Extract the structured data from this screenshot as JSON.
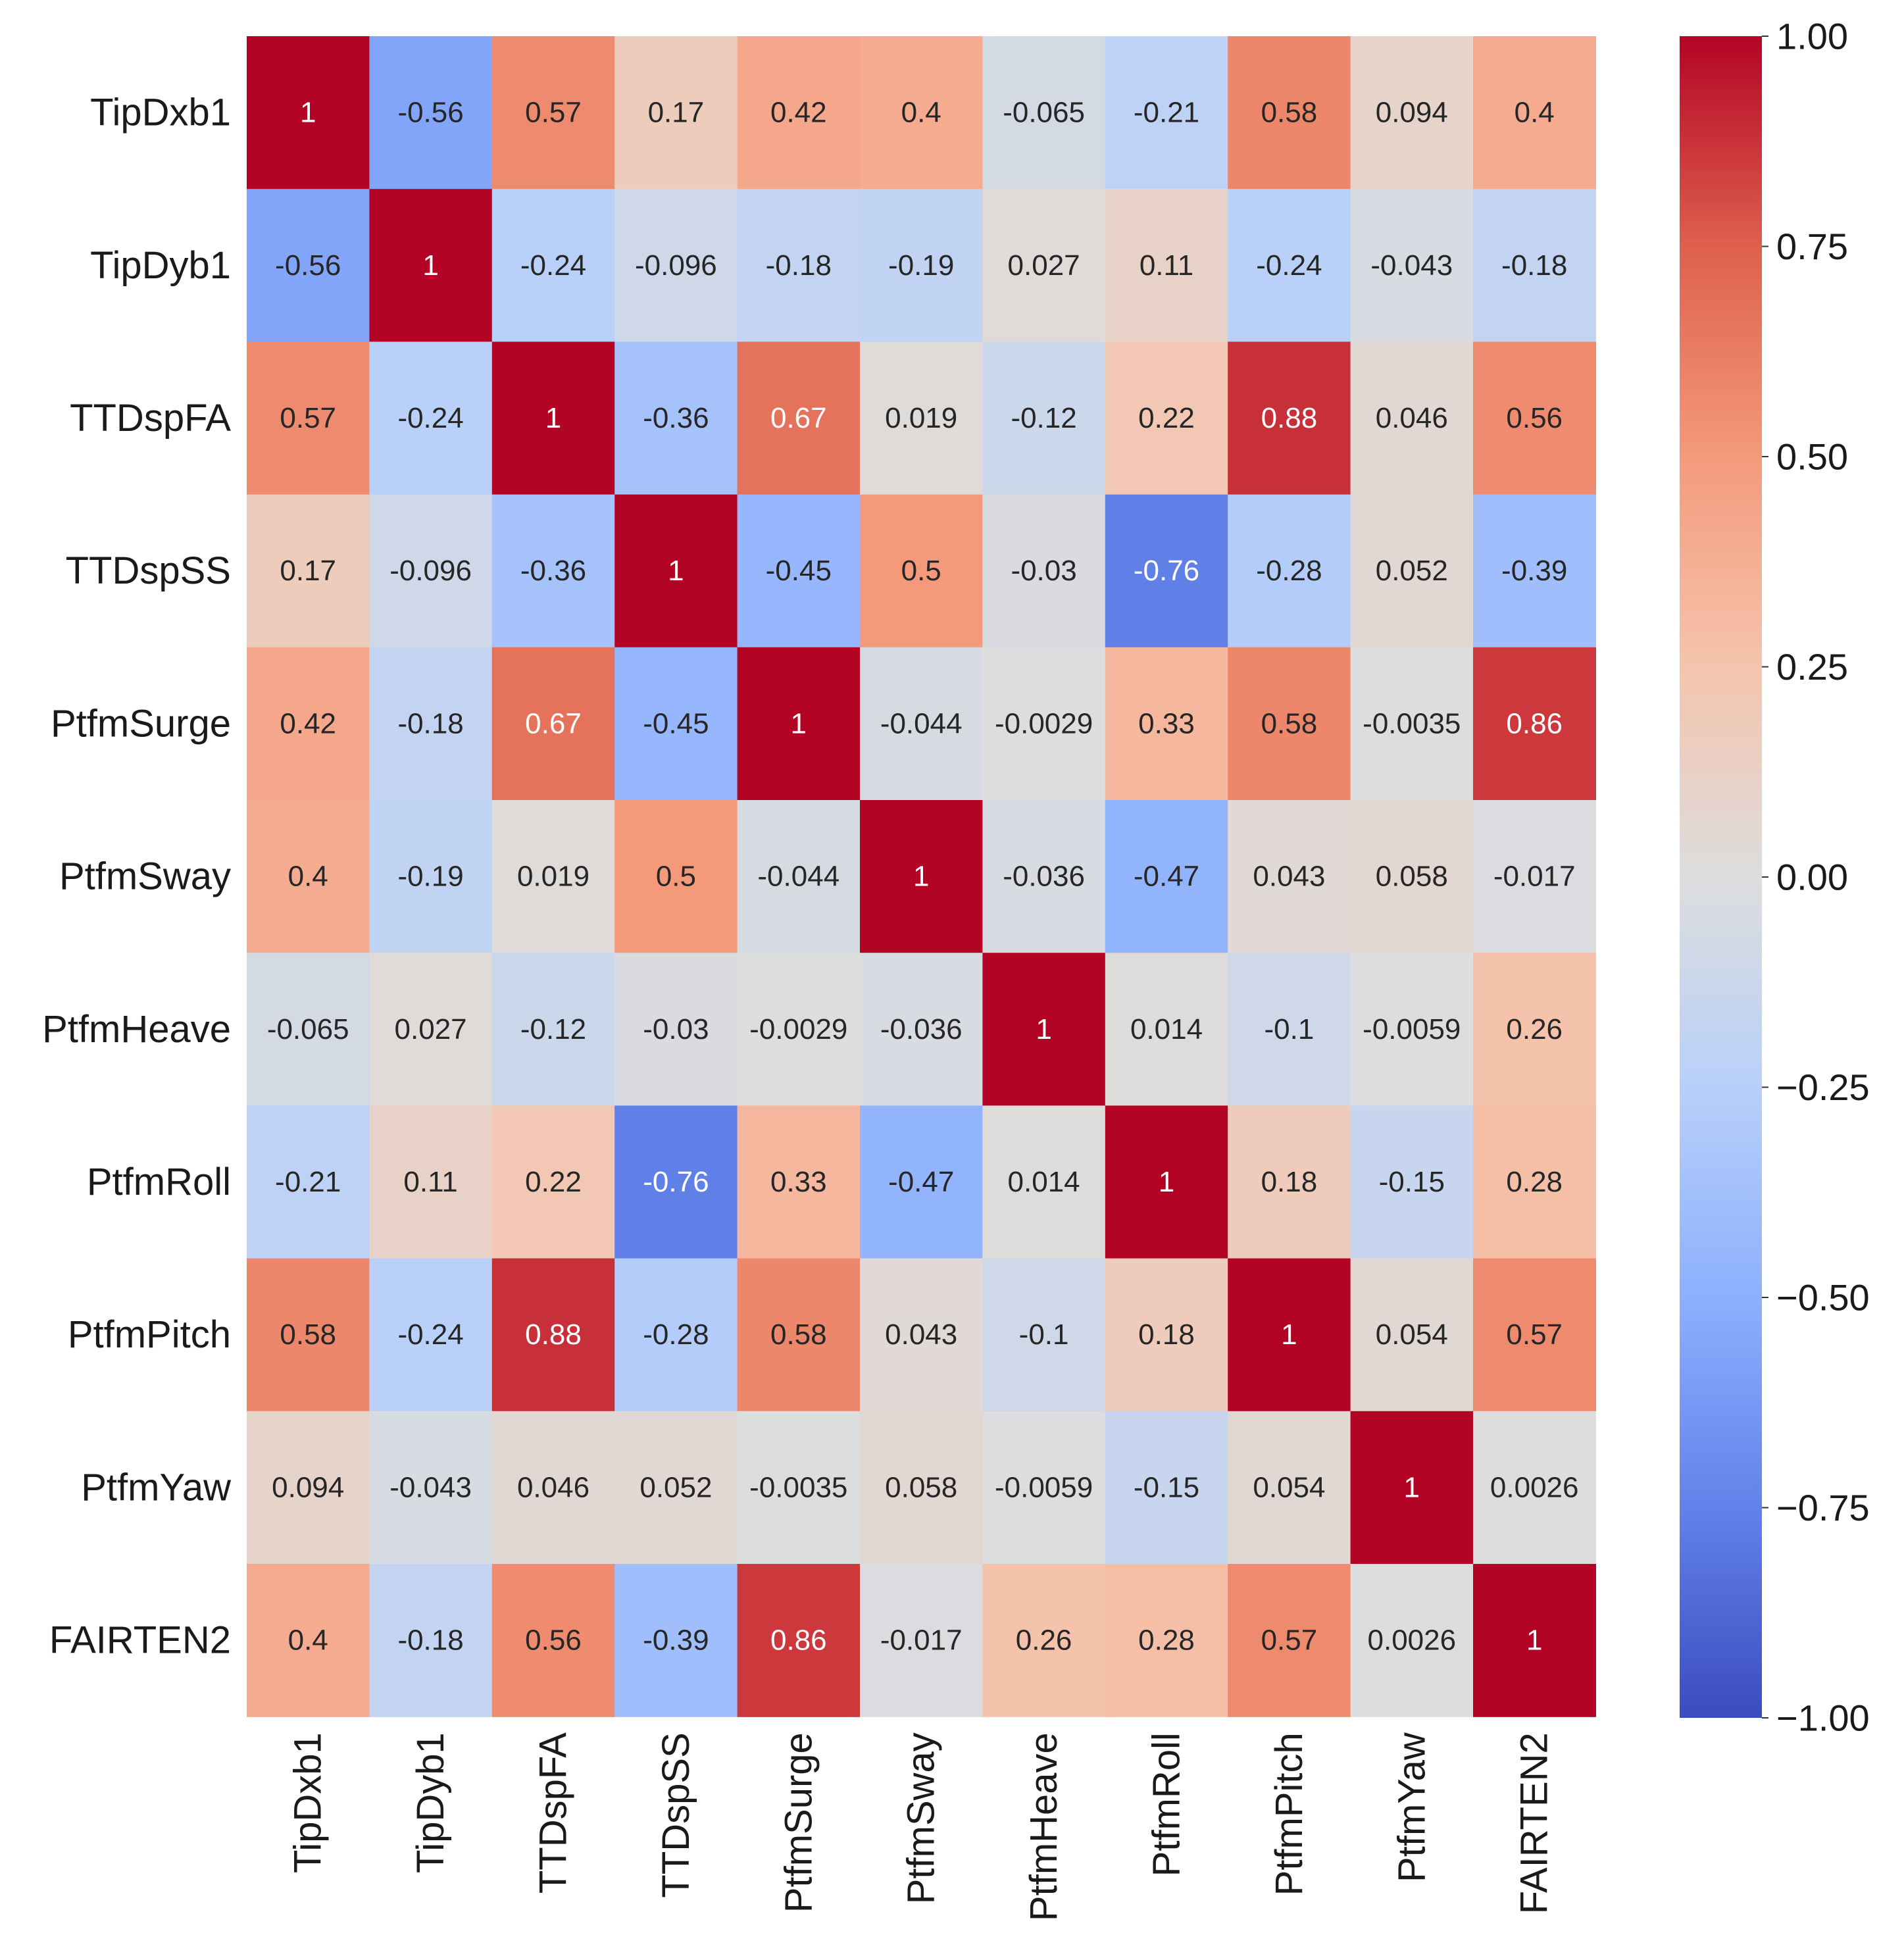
{
  "chart_data": {
    "type": "heatmap",
    "title": "",
    "xlabel": "",
    "ylabel": "",
    "colormap": "coolwarm",
    "vmin": -1.0,
    "vmax": 1.0,
    "variables": [
      "TipDxb1",
      "TipDyb1",
      "TTDspFA",
      "TTDspSS",
      "PtfmSurge",
      "PtfmSway",
      "PtfmHeave",
      "PtfmRoll",
      "PtfmPitch",
      "PtfmYaw",
      "FAIRTEN2"
    ],
    "values": [
      [
        1,
        -0.56,
        0.57,
        0.17,
        0.42,
        0.4,
        -0.065,
        -0.21,
        0.58,
        0.094,
        0.4
      ],
      [
        -0.56,
        1,
        -0.24,
        -0.096,
        -0.18,
        -0.19,
        0.027,
        0.11,
        -0.24,
        -0.043,
        -0.18
      ],
      [
        0.57,
        -0.24,
        1,
        -0.36,
        0.67,
        0.019,
        -0.12,
        0.22,
        0.88,
        0.046,
        0.56
      ],
      [
        0.17,
        -0.096,
        -0.36,
        1,
        -0.45,
        0.5,
        -0.03,
        -0.76,
        -0.28,
        0.052,
        -0.39
      ],
      [
        0.42,
        -0.18,
        0.67,
        -0.45,
        1,
        -0.044,
        -0.0029,
        0.33,
        0.58,
        -0.0035,
        0.86
      ],
      [
        0.4,
        -0.19,
        0.019,
        0.5,
        -0.044,
        1,
        -0.036,
        -0.47,
        0.043,
        0.058,
        -0.017
      ],
      [
        -0.065,
        0.027,
        -0.12,
        -0.03,
        -0.0029,
        -0.036,
        1,
        0.014,
        -0.1,
        -0.0059,
        0.26
      ],
      [
        -0.21,
        0.11,
        0.22,
        -0.76,
        0.33,
        -0.47,
        0.014,
        1,
        0.18,
        -0.15,
        0.28
      ],
      [
        0.58,
        -0.24,
        0.88,
        -0.28,
        0.58,
        0.043,
        -0.1,
        0.18,
        1,
        0.054,
        0.57
      ],
      [
        0.094,
        -0.043,
        0.046,
        0.052,
        -0.0035,
        0.058,
        -0.0059,
        -0.15,
        0.054,
        1,
        0.0026
      ],
      [
        0.4,
        -0.18,
        0.56,
        -0.39,
        0.86,
        -0.017,
        0.26,
        0.28,
        0.57,
        0.0026,
        1
      ]
    ],
    "colorbar": {
      "ticks": [
        1.0,
        0.75,
        0.5,
        0.25,
        0.0,
        -0.25,
        -0.5,
        -0.75,
        -1.0
      ],
      "tick_labels": [
        "1.00",
        "0.75",
        "0.50",
        "0.25",
        "0.00",
        "−0.25",
        "−0.50",
        "−0.75",
        "−1.00"
      ]
    }
  }
}
